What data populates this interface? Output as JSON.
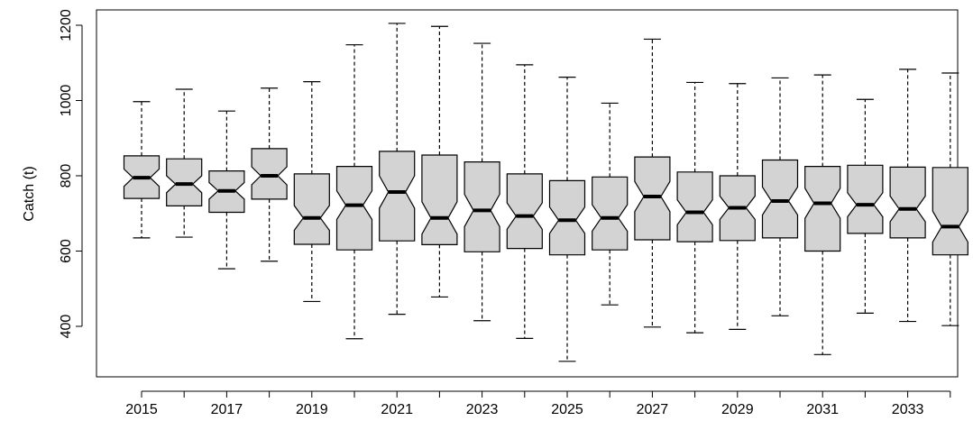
{
  "chart_data": {
    "type": "boxplot",
    "notched": true,
    "title": "",
    "xlabel": "",
    "ylabel": "Catch (t)",
    "ylim": [
      270,
      1230
    ],
    "x_tick_labels": [
      "2015",
      "2017",
      "2019",
      "2021",
      "2023",
      "2025",
      "2027",
      "2029",
      "2031",
      "2033"
    ],
    "y_ticks": [
      400,
      600,
      800,
      1000,
      1200
    ],
    "box_fill": "#d3d3d3",
    "boxes": [
      {
        "year": 2015,
        "min": 635,
        "q1": 740,
        "median": 795,
        "q3": 853,
        "max": 997,
        "notch_lo": 772,
        "notch_hi": 818
      },
      {
        "year": 2016,
        "min": 637,
        "q1": 720,
        "median": 778,
        "q3": 845,
        "max": 1030,
        "notch_lo": 755,
        "notch_hi": 800
      },
      {
        "year": 2017,
        "min": 553,
        "q1": 703,
        "median": 760,
        "q3": 813,
        "max": 972,
        "notch_lo": 738,
        "notch_hi": 782
      },
      {
        "year": 2018,
        "min": 573,
        "q1": 738,
        "median": 800,
        "q3": 872,
        "max": 1033,
        "notch_lo": 776,
        "notch_hi": 824
      },
      {
        "year": 2019,
        "min": 466,
        "q1": 618,
        "median": 688,
        "q3": 805,
        "max": 1050,
        "notch_lo": 655,
        "notch_hi": 721
      },
      {
        "year": 2020,
        "min": 367,
        "q1": 603,
        "median": 722,
        "q3": 825,
        "max": 1148,
        "notch_lo": 684,
        "notch_hi": 760
      },
      {
        "year": 2021,
        "min": 432,
        "q1": 627,
        "median": 757,
        "q3": 865,
        "max": 1205,
        "notch_lo": 714,
        "notch_hi": 800
      },
      {
        "year": 2022,
        "min": 478,
        "q1": 617,
        "median": 688,
        "q3": 855,
        "max": 1197,
        "notch_lo": 645,
        "notch_hi": 731
      },
      {
        "year": 2023,
        "min": 415,
        "q1": 598,
        "median": 708,
        "q3": 837,
        "max": 1152,
        "notch_lo": 665,
        "notch_hi": 751
      },
      {
        "year": 2024,
        "min": 368,
        "q1": 607,
        "median": 693,
        "q3": 805,
        "max": 1095,
        "notch_lo": 658,
        "notch_hi": 728
      },
      {
        "year": 2025,
        "min": 307,
        "q1": 590,
        "median": 682,
        "q3": 787,
        "max": 1062,
        "notch_lo": 647,
        "notch_hi": 717
      },
      {
        "year": 2026,
        "min": 457,
        "q1": 603,
        "median": 688,
        "q3": 797,
        "max": 993,
        "notch_lo": 653,
        "notch_hi": 723
      },
      {
        "year": 2027,
        "min": 398,
        "q1": 630,
        "median": 745,
        "q3": 850,
        "max": 1163,
        "notch_lo": 705,
        "notch_hi": 785
      },
      {
        "year": 2028,
        "min": 383,
        "q1": 625,
        "median": 703,
        "q3": 810,
        "max": 1048,
        "notch_lo": 670,
        "notch_hi": 736
      },
      {
        "year": 2029,
        "min": 392,
        "q1": 628,
        "median": 715,
        "q3": 800,
        "max": 1045,
        "notch_lo": 684,
        "notch_hi": 746
      },
      {
        "year": 2030,
        "min": 428,
        "q1": 635,
        "median": 733,
        "q3": 842,
        "max": 1060,
        "notch_lo": 696,
        "notch_hi": 770
      },
      {
        "year": 2031,
        "min": 325,
        "q1": 600,
        "median": 727,
        "q3": 825,
        "max": 1068,
        "notch_lo": 687,
        "notch_hi": 767
      },
      {
        "year": 2032,
        "min": 435,
        "q1": 647,
        "median": 723,
        "q3": 828,
        "max": 1003,
        "notch_lo": 691,
        "notch_hi": 755
      },
      {
        "year": 2033,
        "min": 413,
        "q1": 635,
        "median": 712,
        "q3": 823,
        "max": 1083,
        "notch_lo": 678,
        "notch_hi": 746
      },
      {
        "year": 2034,
        "min": 402,
        "q1": 590,
        "median": 665,
        "q3": 822,
        "max": 1073,
        "notch_lo": 624,
        "notch_hi": 706
      }
    ]
  }
}
